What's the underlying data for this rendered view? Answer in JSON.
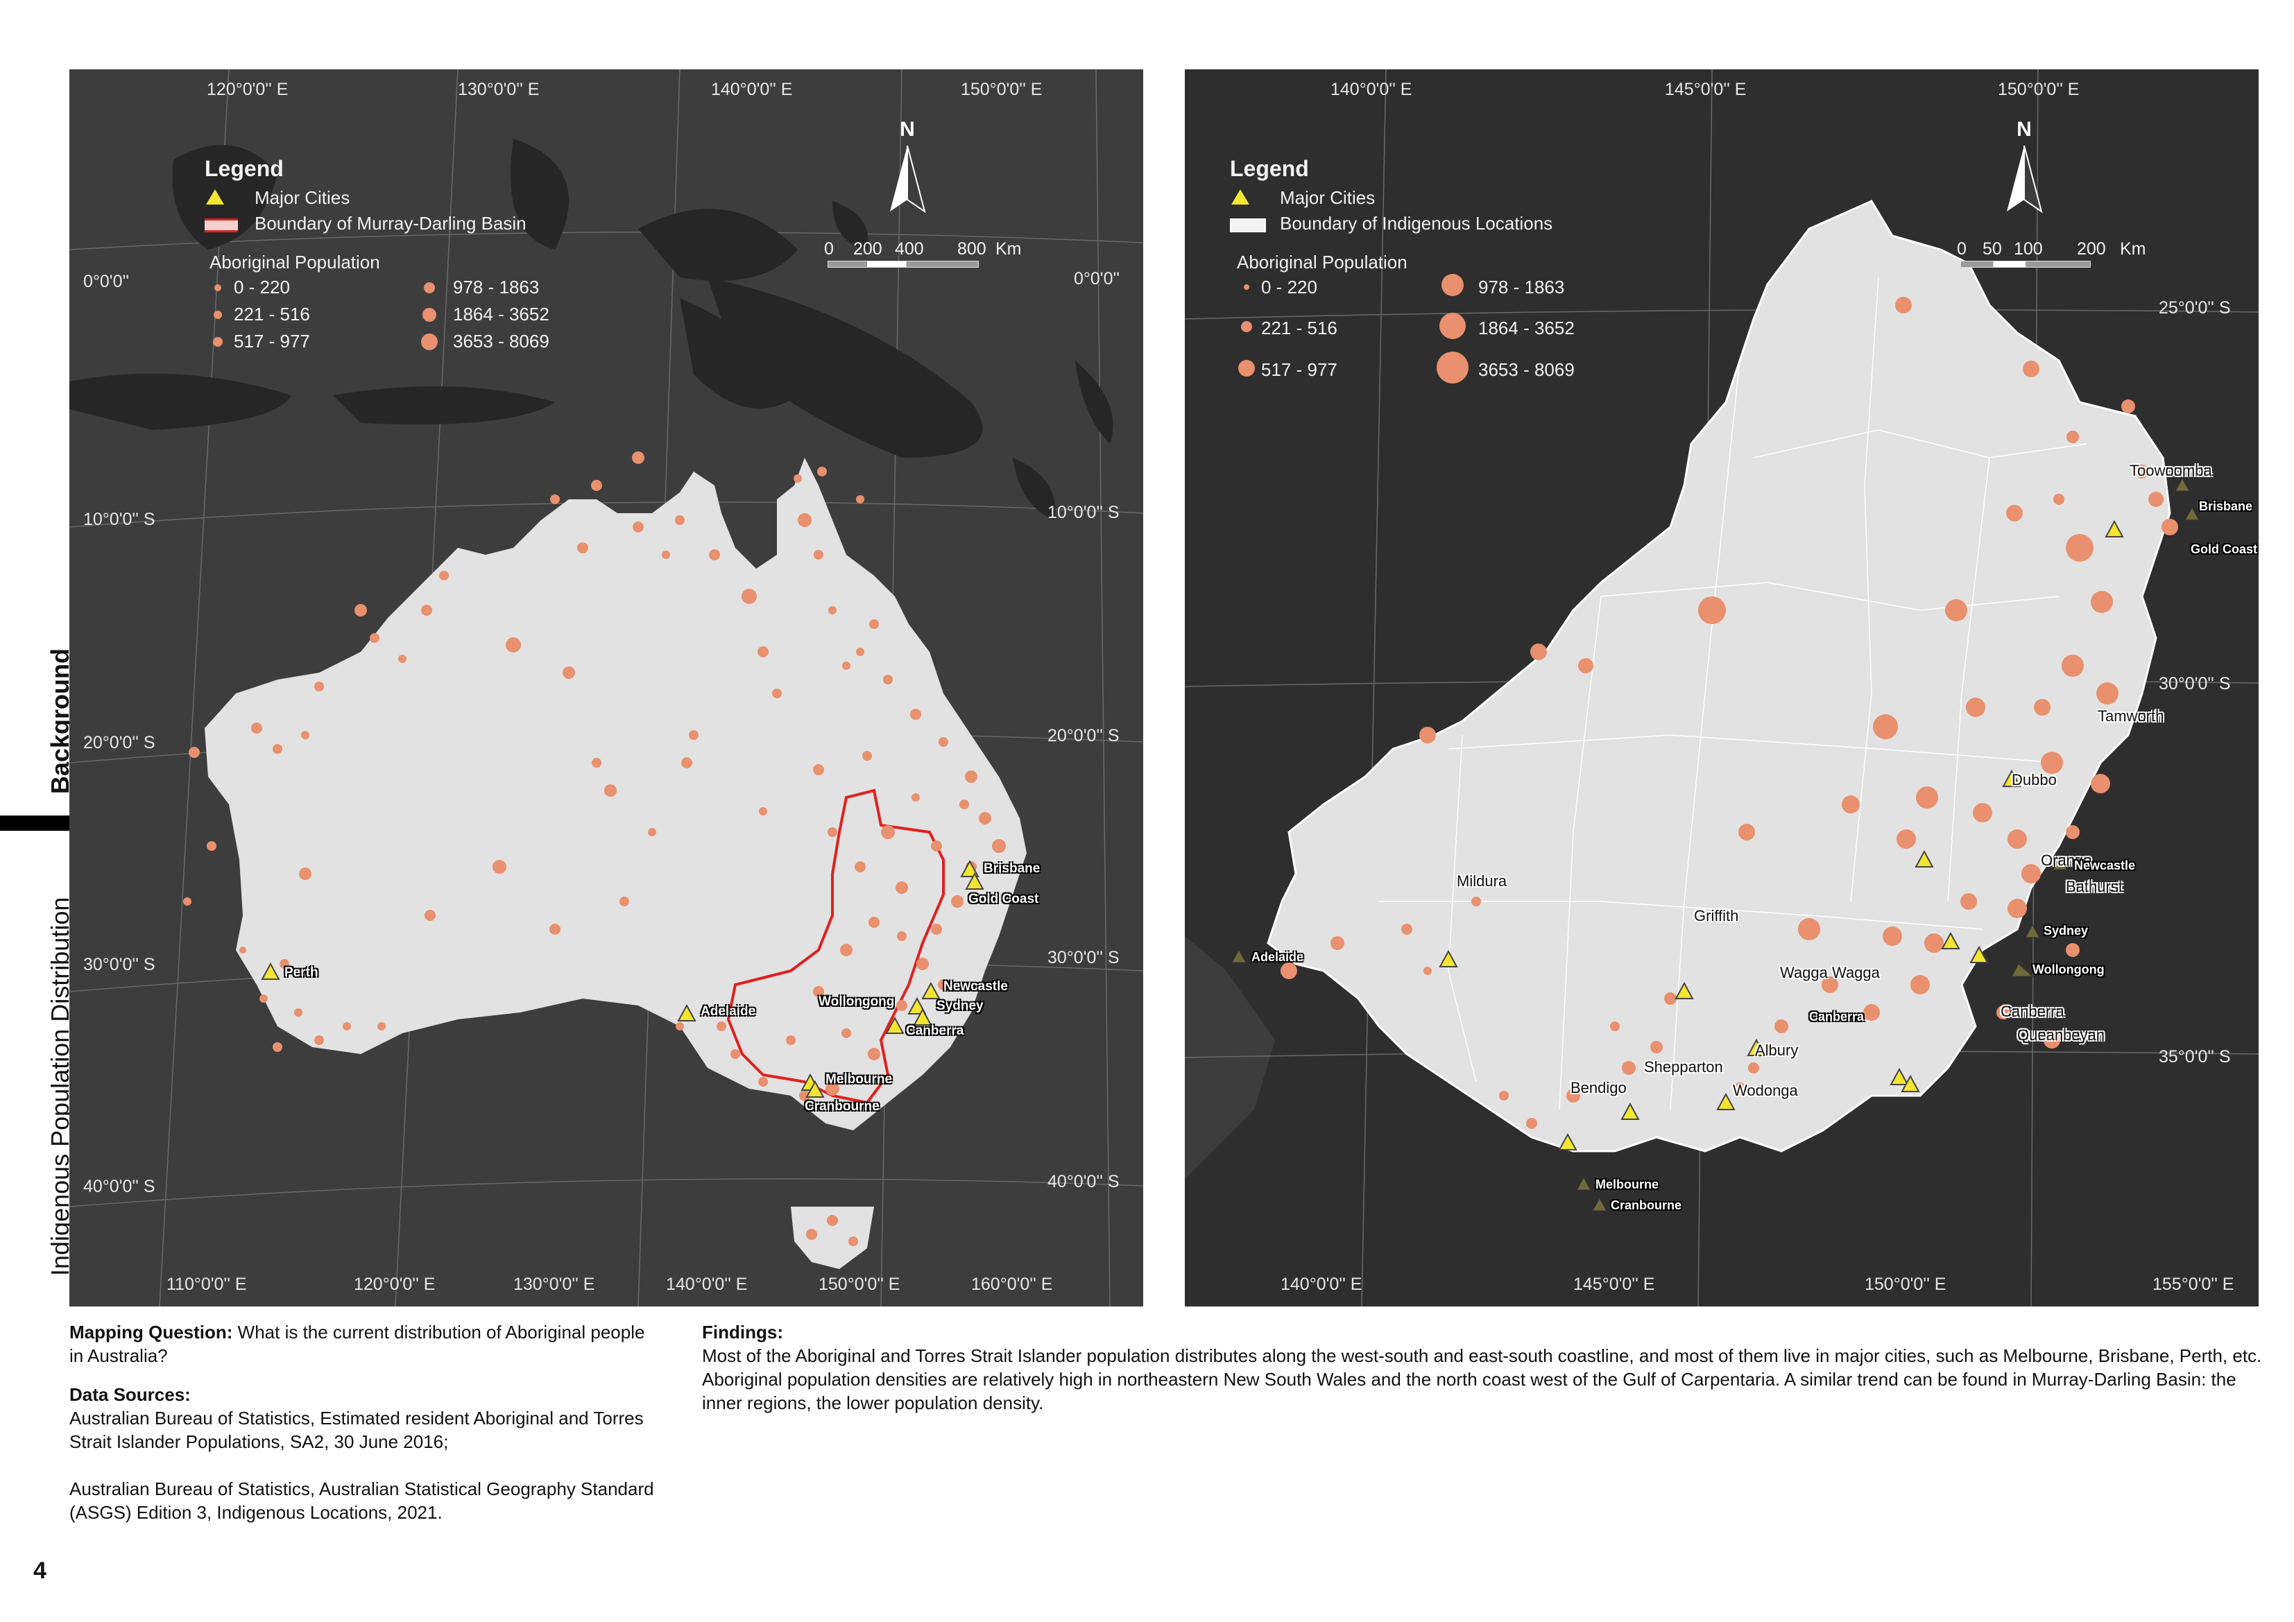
{
  "side": {
    "section": "Background",
    "topic": "Indigenous Population Distribution"
  },
  "left_map": {
    "top_longitudes": [
      "120°0'0'' E",
      "130°0'0'' E",
      "140°0'0'' E",
      "150°0'0'' E"
    ],
    "bottom_longitudes": [
      "110°0'0'' E",
      "120°0'0'' E",
      "130°0'0'' E",
      "140°0'0'' E",
      "150°0'0'' E",
      "160°0'0'' E"
    ],
    "left_latitudes": [
      "0°0'0''",
      "10°0'0'' S",
      "20°0'0'' S",
      "30°0'0'' S",
      "40°0'0'' S"
    ],
    "right_latitudes": [
      "0°0'0''",
      "10°0'0'' S",
      "20°0'0'' S",
      "30°0'0'' S",
      "40°0'0'' S"
    ],
    "legend": {
      "title": "Legend",
      "major_cities": "Major Cities",
      "boundary": "Boundary of Murray-Darling Basin",
      "pop_title": "Aboriginal Population",
      "classes": [
        "0 - 220",
        "221 - 516",
        "517 - 977",
        "978 - 1863",
        "1864 - 3652",
        "3653 - 8069"
      ]
    },
    "scale": {
      "labels": [
        "0",
        "200",
        "400",
        "800",
        "Km"
      ]
    },
    "north": "N",
    "cities": [
      "Brisbane",
      "Gold Coast",
      "Perth",
      "Newcastle",
      "Wollongong",
      "Sydney",
      "Adelaide",
      "Canberra",
      "Melbourne",
      "Cranbourne"
    ]
  },
  "right_map": {
    "top_longitudes": [
      "140°0'0'' E",
      "145°0'0'' E",
      "150°0'0'' E"
    ],
    "bottom_longitudes": [
      "140°0'0'' E",
      "145°0'0'' E",
      "150°0'0'' E",
      "155°0'0'' E"
    ],
    "right_latitudes": [
      "25°0'0'' S",
      "30°0'0'' S",
      "35°0'0'' S"
    ],
    "legend": {
      "title": "Legend",
      "major_cities": "Major Cities",
      "boundary": "Boundary of Indigenous Locations",
      "pop_title": "Aboriginal Population",
      "classes": [
        "0 - 220",
        "221 - 516",
        "517 - 977",
        "978 - 1863",
        "1864 - 3652",
        "3653 - 8069"
      ]
    },
    "scale": {
      "labels": [
        "0",
        "50",
        "100",
        "200",
        "Km"
      ]
    },
    "north": "N",
    "cities_inside": [
      "Toowoomba",
      "Tamworth",
      "Dubbo",
      "Orange",
      "Bathurst",
      "Mildura",
      "Griffith",
      "Wagga Wagga",
      "Canberra",
      "Queanbeyan",
      "Albury",
      "Wodonga",
      "Shepparton",
      "Bendigo"
    ],
    "cities_outside": [
      "Brisbane",
      "Gold Coast",
      "Newcastle",
      "Sydney",
      "Wollongong",
      "Adelaide",
      "Canberra",
      "Melbourne",
      "Cranbourne"
    ]
  },
  "text": {
    "q_label": "Mapping Question:",
    "q_text": "What is the current distribution of Aboriginal people in Australia?",
    "ds_label": "Data Sources:",
    "ds_1": "Australian Bureau of Statistics, Estimated resident Aboriginal and Torres Strait Islander Populations, SA2, 30 June 2016;",
    "ds_2": "Australian Bureau of Statistics, Australian Statistical Geography Standard (ASGS) Edition 3, Indigenous Locations, 2021.",
    "f_label": "Findings:",
    "f_text": "Most of the Aboriginal and Torres Strait Islander population distributes along the west-south and east-south coastline, and most of them live in major cities, such as Melbourne, Brisbane, Perth, etc. Aboriginal population densities are relatively high in northeastern New South Wales and the north coast west of the Gulf of Carpentaria. A similar trend can be found in Murray-Darling Basin: the inner regions, the lower population density."
  },
  "page_number": "4",
  "colors": {
    "map_bg": "#3d3d3d",
    "land_other": "#2a2a2a",
    "land_main": "#e2e2e2",
    "dots": "#e9906e",
    "boundary": "#e02020",
    "city_fill": "#f4e531"
  }
}
